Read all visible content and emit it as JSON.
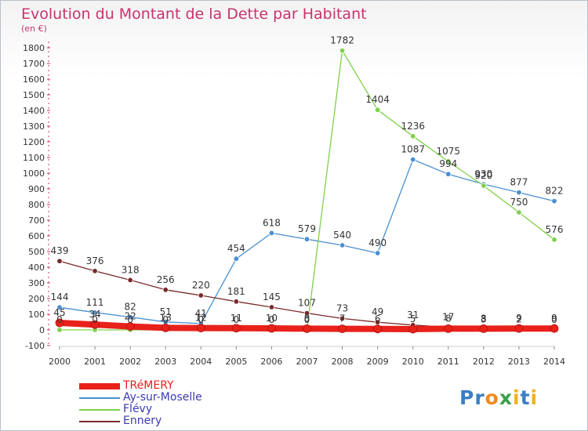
{
  "title": "Evolution du Montant de la Dette par Habitant",
  "subtitle": "(en €)",
  "logo": "Proxiti",
  "chart_data": {
    "type": "line",
    "title": "Evolution du Montant de la Dette par Habitant",
    "ylabel": "(en €)",
    "xlabel": "",
    "x": [
      2000,
      2001,
      2002,
      2003,
      2004,
      2005,
      2006,
      2007,
      2008,
      2009,
      2010,
      2011,
      2012,
      2013,
      2014
    ],
    "ylim": [
      -100,
      1800
    ],
    "yticks": [
      -100,
      0,
      100,
      200,
      300,
      400,
      500,
      600,
      700,
      800,
      900,
      1000,
      1100,
      1200,
      1300,
      1400,
      1500,
      1600,
      1700,
      1800
    ],
    "grid": false,
    "legend_position": "bottom-left",
    "series": [
      {
        "name": "TRéMERY",
        "color": "#e8211a",
        "thick": true,
        "values": [
          45,
          34,
          22,
          13,
          12,
          11,
          10,
          8,
          7,
          6,
          5,
          8,
          8,
          9,
          9
        ],
        "labels": [
          "45",
          "34",
          "22",
          "13",
          "12",
          "11",
          "10",
          "8",
          "7",
          "6",
          "5",
          "8",
          "8",
          "9",
          "9"
        ]
      },
      {
        "name": "Ay-sur-Moselle",
        "color": "#4a90d0",
        "values": [
          144,
          111,
          82,
          51,
          41,
          454,
          618,
          579,
          540,
          490,
          1087,
          994,
          930,
          877,
          822
        ],
        "labels": [
          "144",
          "111",
          "82",
          "51",
          "41",
          "454",
          "618",
          "579",
          "540",
          "490",
          "1087",
          "994",
          "930",
          "877",
          "822"
        ]
      },
      {
        "name": "Flévy",
        "color": "#7ed04a",
        "values": [
          0,
          0,
          0,
          0,
          0,
          0,
          0,
          0,
          1782,
          1404,
          1236,
          1075,
          920,
          750,
          576
        ],
        "labels": [
          "0",
          "0",
          "0",
          "0",
          "0",
          "0",
          "0",
          "0",
          "1782",
          "1404",
          "1236",
          "1075",
          "920",
          "750",
          "576"
        ]
      },
      {
        "name": "Ennery",
        "color": "#7a2a2a",
        "values": [
          439,
          376,
          318,
          256,
          220,
          181,
          145,
          107,
          73,
          49,
          31,
          17,
          3,
          2,
          0
        ],
        "labels": [
          "439",
          "376",
          "318",
          "256",
          "220",
          "181",
          "145",
          "107",
          "73",
          "49",
          "31",
          "17",
          "3",
          "2",
          "0"
        ]
      }
    ]
  }
}
